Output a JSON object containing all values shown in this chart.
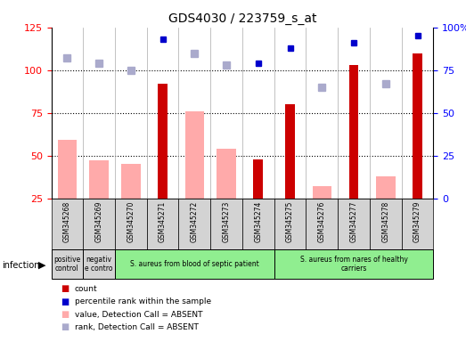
{
  "title": "GDS4030 / 223759_s_at",
  "samples": [
    "GSM345268",
    "GSM345269",
    "GSM345270",
    "GSM345271",
    "GSM345272",
    "GSM345273",
    "GSM345274",
    "GSM345275",
    "GSM345276",
    "GSM345277",
    "GSM345278",
    "GSM345279"
  ],
  "count_values": [
    null,
    null,
    null,
    92,
    null,
    null,
    48,
    80,
    null,
    103,
    null,
    110
  ],
  "percentile_rank": [
    null,
    null,
    null,
    93,
    null,
    null,
    79,
    88,
    null,
    91,
    null,
    95
  ],
  "value_absent": [
    59,
    47,
    45,
    null,
    76,
    54,
    null,
    null,
    32,
    null,
    38,
    null
  ],
  "rank_absent": [
    82,
    79,
    75,
    null,
    85,
    78,
    null,
    null,
    65,
    null,
    67,
    null
  ],
  "ylim_left": [
    25,
    125
  ],
  "ylim_right": [
    0,
    100
  ],
  "yticks_left": [
    25,
    50,
    75,
    100,
    125
  ],
  "ytick_labels_right": [
    "0",
    "25",
    "50",
    "75",
    "100%"
  ],
  "groups": [
    {
      "label": "positive\ncontrol",
      "start": 0,
      "end": 1,
      "color": "#d3d3d3"
    },
    {
      "label": "negativ\ne contro",
      "start": 1,
      "end": 2,
      "color": "#d3d3d3"
    },
    {
      "label": "S. aureus from blood of septic patient",
      "start": 2,
      "end": 7,
      "color": "#90ee90"
    },
    {
      "label": "S. aureus from nares of healthy\ncarriers",
      "start": 7,
      "end": 12,
      "color": "#90ee90"
    }
  ],
  "infection_label": "infection",
  "bar_color_count": "#cc0000",
  "bar_color_rank": "#0000cc",
  "bar_color_value_absent": "#ffaaaa",
  "bar_color_rank_absent": "#aaaacc",
  "legend_items": [
    {
      "label": "count",
      "color": "#cc0000"
    },
    {
      "label": "percentile rank within the sample",
      "color": "#0000cc"
    },
    {
      "label": "value, Detection Call = ABSENT",
      "color": "#ffaaaa"
    },
    {
      "label": "rank, Detection Call = ABSENT",
      "color": "#aaaacc"
    }
  ]
}
